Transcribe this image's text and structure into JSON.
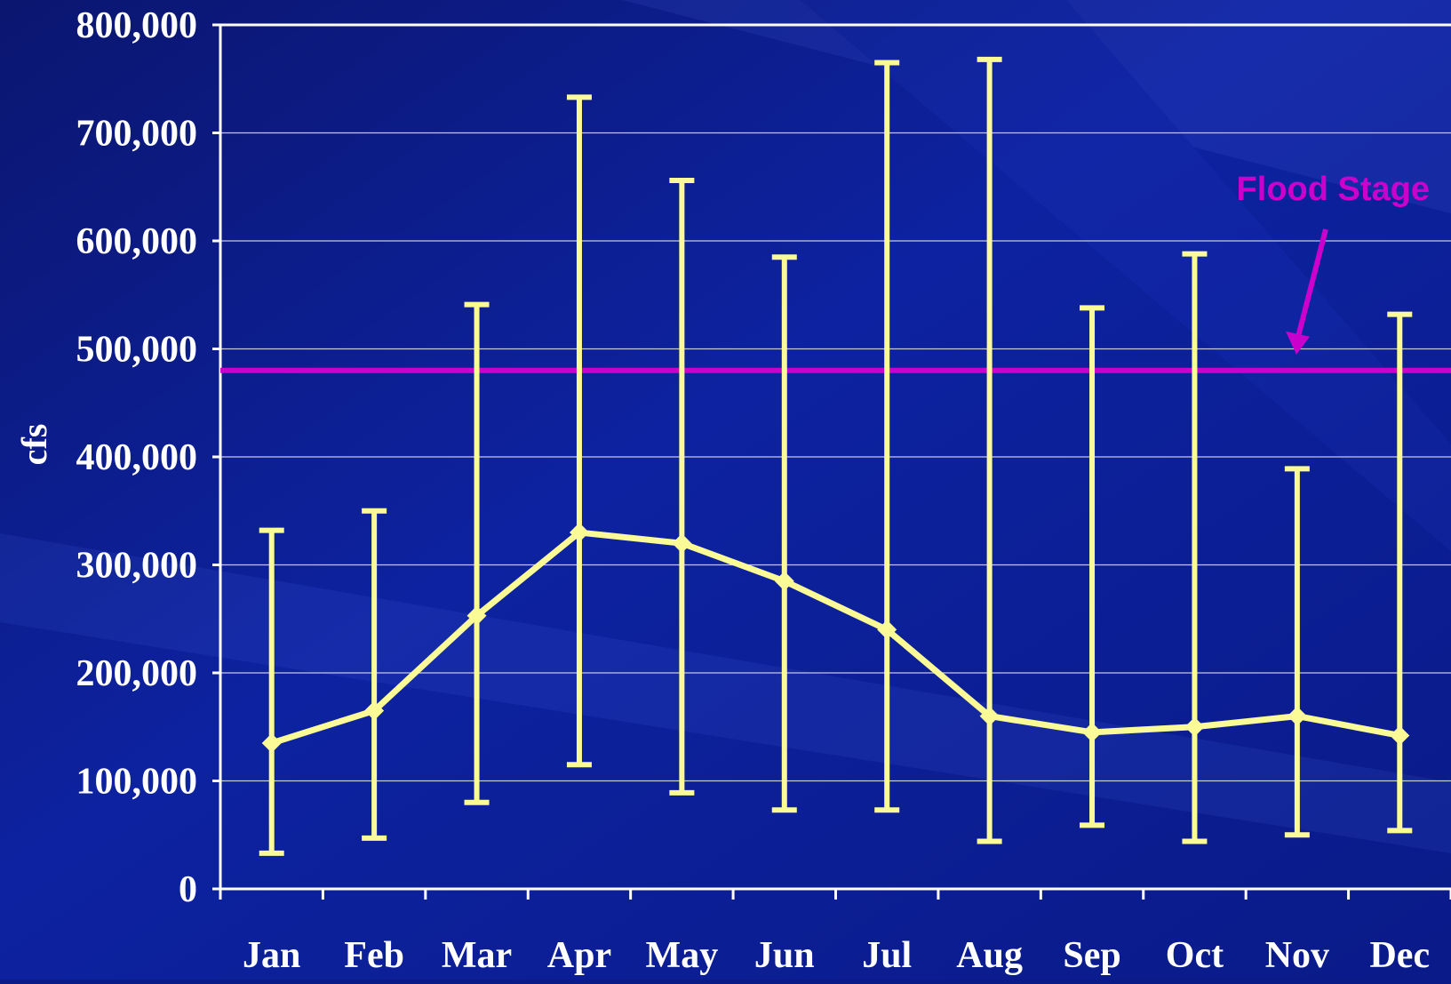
{
  "chart_data": {
    "type": "line",
    "title": "",
    "xlabel": "",
    "ylabel": "cfs",
    "categories": [
      "Jan",
      "Feb",
      "Mar",
      "Apr",
      "May",
      "Jun",
      "Jul",
      "Aug",
      "Sep",
      "Oct",
      "Nov",
      "Dec"
    ],
    "ylim": [
      0,
      800000
    ],
    "yticks": [
      0,
      100000,
      200000,
      300000,
      400000,
      500000,
      600000,
      700000,
      800000
    ],
    "ytick_labels": [
      "0",
      "100,000",
      "200,000",
      "300,000",
      "400,000",
      "500,000",
      "600,000",
      "700,000",
      "800,000"
    ],
    "grid": true,
    "series": [
      {
        "values": [
          135000,
          165000,
          253000,
          330000,
          320000,
          285000,
          240000,
          160000,
          145000,
          150000,
          160000,
          142000
        ],
        "error_high": [
          332000,
          350000,
          541000,
          733000,
          656000,
          585000,
          765000,
          768000,
          538000,
          588000,
          389000,
          532000
        ],
        "error_low": [
          33000,
          47000,
          80000,
          115000,
          89000,
          73000,
          73000,
          44000,
          59000,
          44000,
          50000,
          54000
        ]
      }
    ],
    "reference_line": {
      "label": "Flood Stage",
      "value": 480000
    },
    "colors": {
      "background": "#0a1a86",
      "series": "#fafa96",
      "flood": "#cc00cc",
      "axis": "#ffffff",
      "grid": "#c8c8dc"
    }
  }
}
